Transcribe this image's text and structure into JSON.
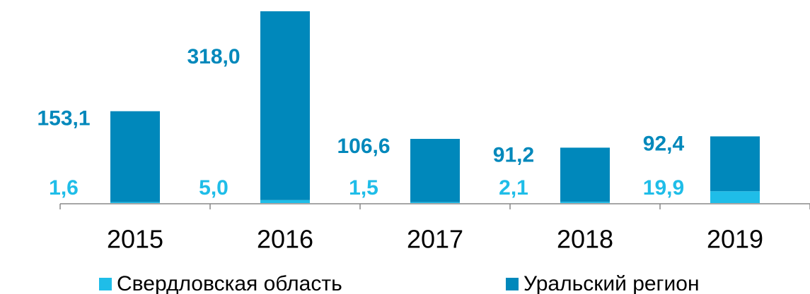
{
  "chart_data": {
    "type": "stacked_bar",
    "categories": [
      "2015",
      "2016",
      "2017",
      "2018",
      "2019"
    ],
    "series": [
      {
        "name": "Свердловская область",
        "color": "#1fbde8",
        "values": [
          1.6,
          5.0,
          1.5,
          2.1,
          19.9
        ],
        "value_labels": [
          "1,6",
          "5,0",
          "1,5",
          "2,1",
          "19,9"
        ]
      },
      {
        "name": "Уральский регион",
        "color": "#0088bb",
        "values": [
          153.1,
          318.0,
          106.6,
          91.2,
          92.4
        ],
        "value_labels": [
          "153,1",
          "318,0",
          "106,6",
          "91,2",
          "92,4"
        ]
      }
    ],
    "ylim": [
      0,
      342
    ]
  }
}
